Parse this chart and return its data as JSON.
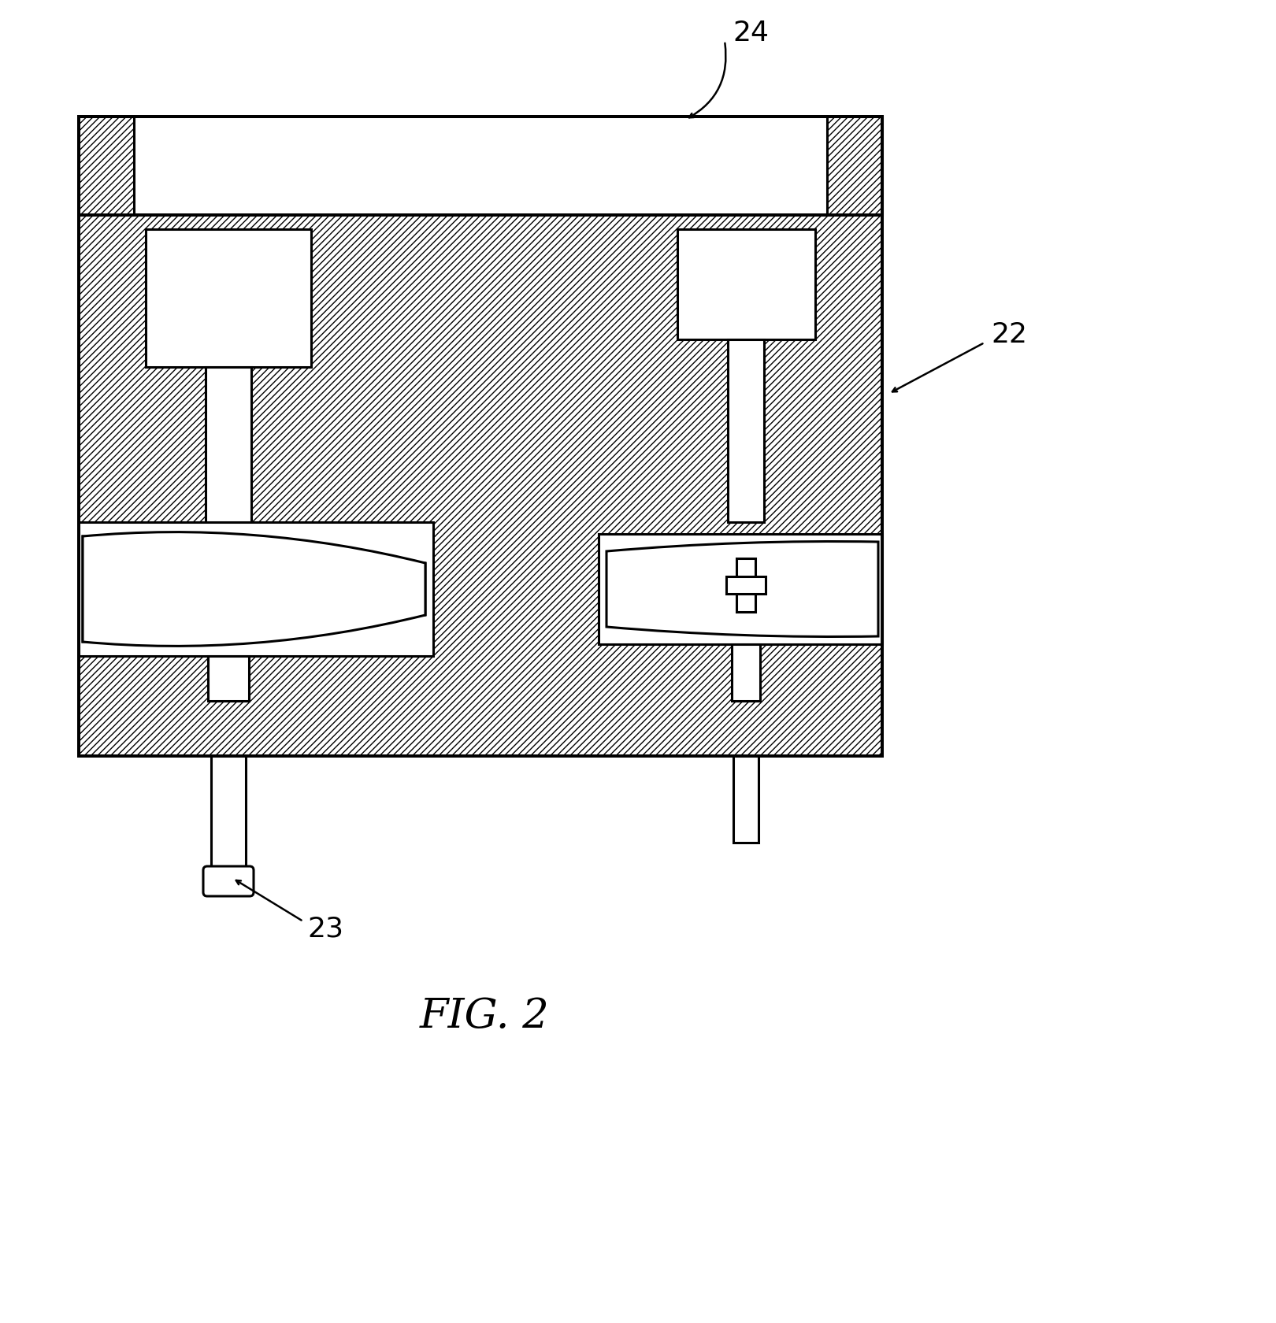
{
  "background_color": "#ffffff",
  "label_22": "22",
  "label_23": "23",
  "label_24": "24",
  "fig_label": "FIG. 2",
  "fig_label_fontsize": 38,
  "ref_fontsize": 26,
  "lw": 2.2,
  "lw_thick": 2.8
}
